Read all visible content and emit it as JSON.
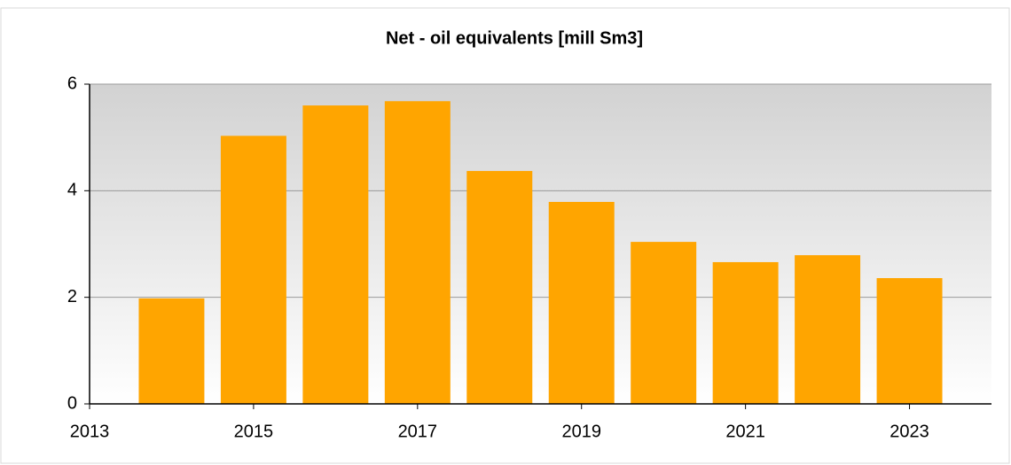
{
  "chart_data": {
    "type": "bar",
    "title": "Net - oil equivalents [mill Sm3]",
    "x": [
      2014,
      2015,
      2016,
      2017,
      2018,
      2019,
      2020,
      2021,
      2022,
      2023
    ],
    "values": [
      1.98,
      5.03,
      5.6,
      5.68,
      4.37,
      3.79,
      3.04,
      2.66,
      2.79,
      2.36
    ],
    "color": "#ffa500",
    "xlim": [
      2013,
      2024
    ],
    "xticks": [
      2013,
      2015,
      2017,
      2019,
      2021,
      2023
    ],
    "ylim": [
      0,
      6
    ],
    "yticks": [
      0,
      2,
      4,
      6
    ],
    "grid": true
  }
}
